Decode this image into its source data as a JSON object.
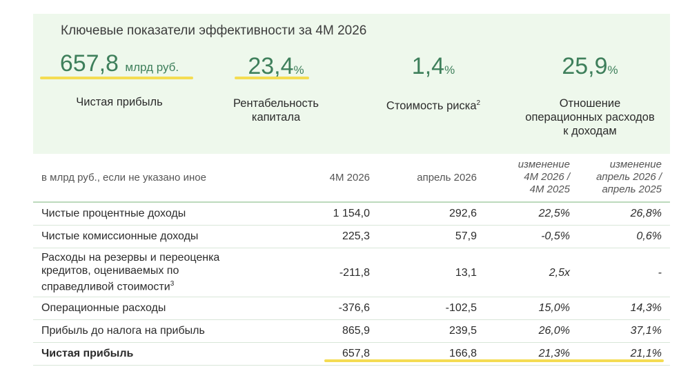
{
  "header": {
    "title": "Ключевые показатели эффективности за 4М 2026"
  },
  "kpis": [
    {
      "value": "657,8",
      "unit": "млрд руб.",
      "label": "Чистая прибыль",
      "label2": "",
      "sup": ""
    },
    {
      "value": "23,4",
      "unit": "%",
      "label": "Рентабельность",
      "label2": "капитала",
      "sup": ""
    },
    {
      "value": "1,4",
      "unit": "%",
      "label": "Стоимость риска",
      "label2": "",
      "sup": "2"
    },
    {
      "value": "25,9",
      "unit": "%",
      "label": "Отношение",
      "label2": "операционных расходов",
      "label3": "к доходам",
      "sup": ""
    }
  ],
  "table": {
    "headers": {
      "metric": "в млрд руб., если не указано иное",
      "c1": "4М 2026",
      "c2": "апрель 2026",
      "c3a": "изменение",
      "c3b": "4М 2026 /",
      "c3c": "4М 2025",
      "c4a": "изменение",
      "c4b": "апрель 2026 /",
      "c4c": "апрель 2025"
    },
    "rows": [
      {
        "name": "Чистые процентные доходы",
        "v1": "1 154,0",
        "v2": "292,6",
        "v3": "22,5%",
        "v4": "26,8%"
      },
      {
        "name": "Чистые комиссионные доходы",
        "v1": "225,3",
        "v2": "57,9",
        "v3": "-0,5%",
        "v4": "0,6%"
      },
      {
        "name_l1": "Расходы на резервы и переоценка",
        "name_l2": "кредитов, оцениваемых по",
        "name_l3": "справедливой стоимости",
        "sup": "3",
        "v1": "-211,8",
        "v2": "13,1",
        "v3": "2,5x",
        "v4": "-"
      },
      {
        "name": "Операционные расходы",
        "v1": "-376,6",
        "v2": "-102,5",
        "v3": "15,0%",
        "v4": "14,3%"
      },
      {
        "name": "Прибыль до налога на прибыль",
        "v1": "865,9",
        "v2": "239,5",
        "v3": "26,0%",
        "v4": "37,1%"
      },
      {
        "name": "Чистая прибыль",
        "v1": "657,8",
        "v2": "166,8",
        "v3": "21,3%",
        "v4": "21,1%"
      }
    ]
  },
  "colors": {
    "accent": "#3e7f5b",
    "highlight": "#f4dc52",
    "panel": "#eef8ec"
  }
}
